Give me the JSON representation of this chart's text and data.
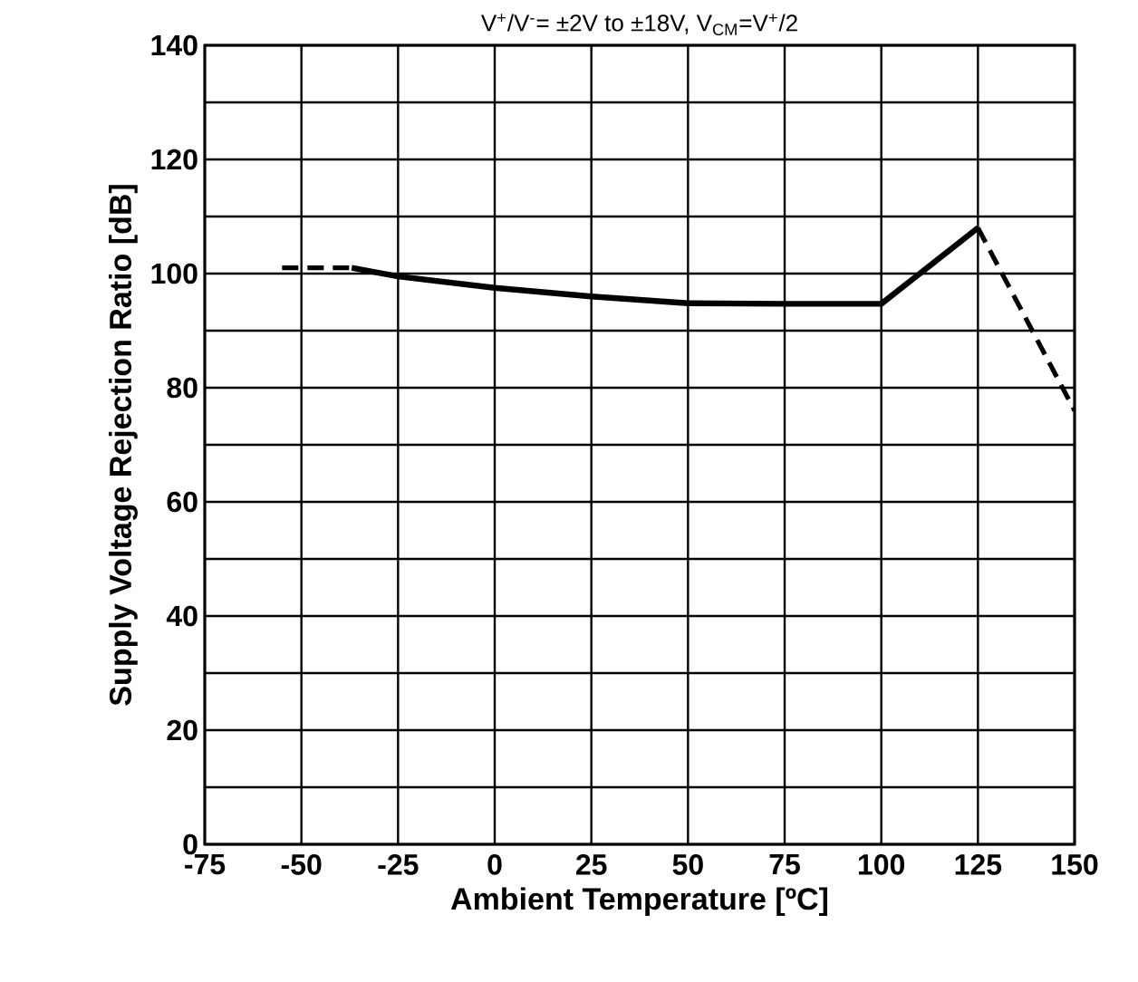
{
  "chart_data": {
    "type": "line",
    "title": "V$^{+}$/V$^{-}$= ±2V to ±18V, V$_{CM}$=V$^{+}$/2",
    "xlabel": "Ambient Temperature [ºC]",
    "ylabel": "Supply Voltage Rejection Ratio [dB]",
    "series": [
      {
        "color": "#000000",
        "line_style": "dashed",
        "x": [
          -55,
          -37
        ],
        "values": [
          101,
          101
        ]
      },
      {
        "color": "#000000",
        "line_style": "solid",
        "x": [
          -37,
          -25,
          0,
          25,
          50,
          75,
          100,
          125
        ],
        "values": [
          101,
          99.5,
          97.5,
          96,
          94.8,
          94.7,
          94.7,
          108
        ]
      },
      {
        "color": "#000000",
        "line_style": "dashed",
        "x": [
          125,
          150
        ],
        "values": [
          108,
          76
        ]
      }
    ],
    "xlim": [
      -75,
      150
    ],
    "xticks": [
      -75,
      -50,
      -25,
      0,
      25,
      50,
      75,
      100,
      125,
      150
    ],
    "ylim": [
      0,
      140
    ],
    "yticks": [
      0,
      {
        "value": 10,
        "label": null
      },
      20,
      {
        "value": 30,
        "label": null
      },
      40,
      {
        "value": 50,
        "label": null
      },
      60,
      {
        "value": 70,
        "label": null
      },
      80,
      {
        "value": 90,
        "label": null
      },
      100,
      {
        "value": 110,
        "label": null
      },
      120,
      {
        "value": 130,
        "label": null
      },
      140
    ],
    "grid": true,
    "marker": "none"
  }
}
